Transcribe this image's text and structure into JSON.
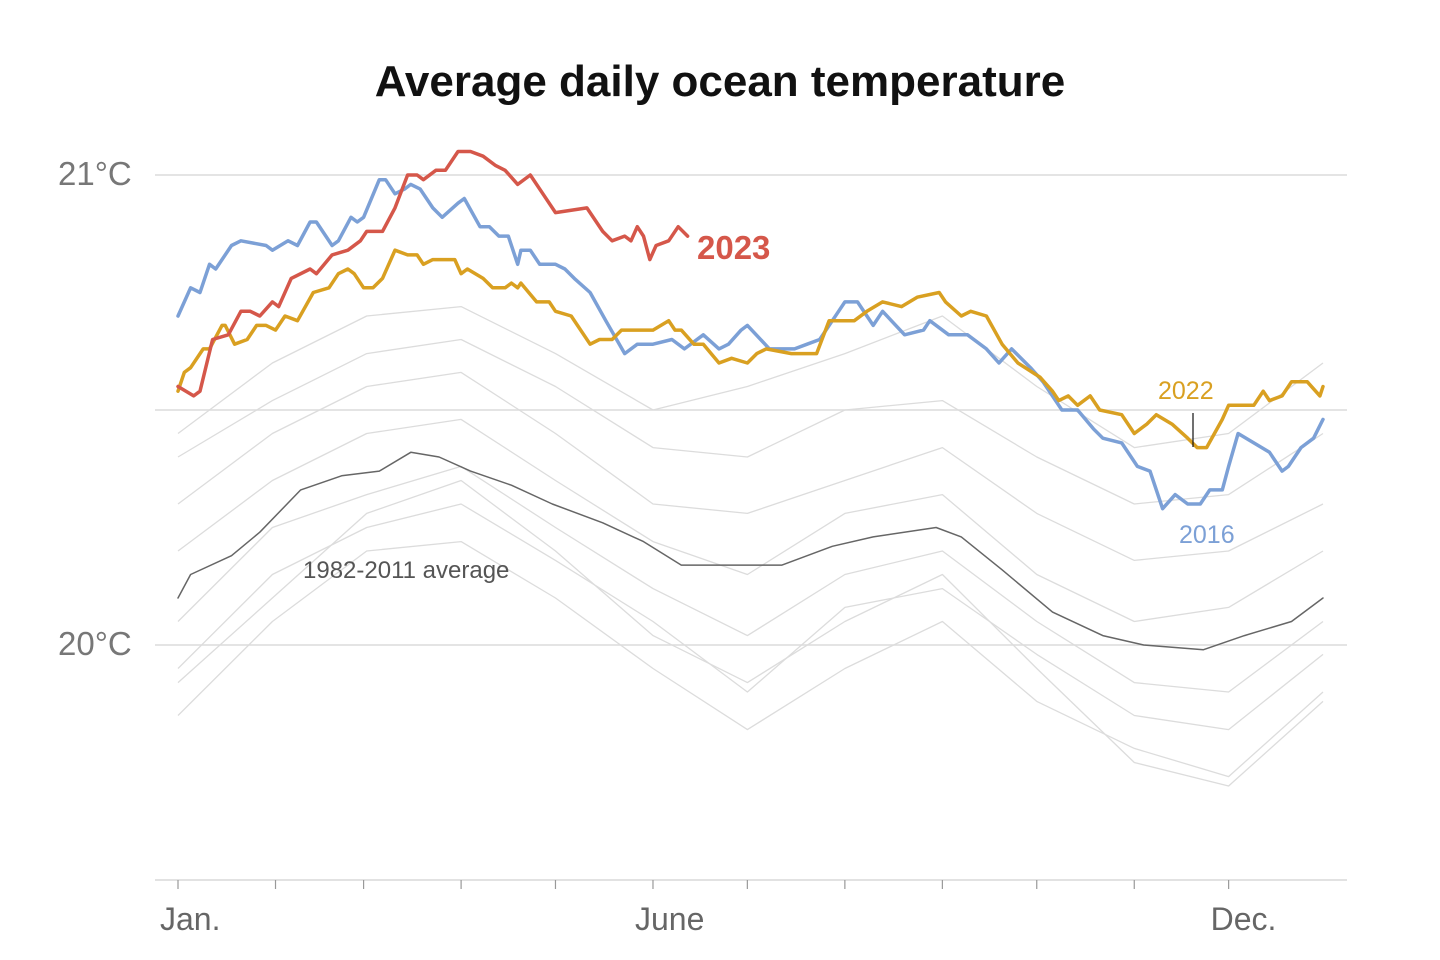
{
  "chart_data": {
    "type": "line",
    "title": "Average daily ocean temperature",
    "xlabel": "",
    "ylabel": "",
    "x_ticks": [
      {
        "date": "01-01",
        "label": "Jan."
      },
      {
        "date": "02-01",
        "label": ""
      },
      {
        "date": "03-01",
        "label": ""
      },
      {
        "date": "04-01",
        "label": ""
      },
      {
        "date": "05-01",
        "label": ""
      },
      {
        "date": "06-01",
        "label": "June"
      },
      {
        "date": "07-01",
        "label": ""
      },
      {
        "date": "08-01",
        "label": ""
      },
      {
        "date": "09-01",
        "label": ""
      },
      {
        "date": "10-01",
        "label": ""
      },
      {
        "date": "11-01",
        "label": ""
      },
      {
        "date": "12-01",
        "label": "Dec."
      }
    ],
    "y_ticks": [
      {
        "value": 21,
        "label": "21°C"
      },
      {
        "value": 20.5,
        "label": ""
      },
      {
        "value": 20,
        "label": "20°C"
      }
    ],
    "ylim": [
      19.5,
      21.1
    ],
    "xlim": [
      "01-01",
      "12-31"
    ],
    "grid": true,
    "background_series_color": "#dcdcdc",
    "background_series": [
      {
        "x": [
          "01-01",
          "01-31",
          "03-02",
          "04-01",
          "05-01",
          "06-01",
          "07-01",
          "08-01",
          "09-01",
          "10-01",
          "11-01",
          "12-01",
          "12-31"
        ],
        "y": [
          20.45,
          20.6,
          20.7,
          20.72,
          20.62,
          20.5,
          20.55,
          20.62,
          20.7,
          20.55,
          20.42,
          20.45,
          20.6
        ]
      },
      {
        "x": [
          "01-01",
          "01-31",
          "03-02",
          "04-01",
          "05-01",
          "06-01",
          "07-01",
          "08-01",
          "09-01",
          "10-01",
          "11-01",
          "12-01",
          "12-31"
        ],
        "y": [
          20.4,
          20.52,
          20.62,
          20.65,
          20.55,
          20.42,
          20.4,
          20.5,
          20.52,
          20.4,
          20.3,
          20.32,
          20.45
        ]
      },
      {
        "x": [
          "01-01",
          "01-31",
          "03-02",
          "04-01",
          "05-01",
          "06-01",
          "07-01",
          "08-01",
          "09-01",
          "10-01",
          "11-01",
          "12-01",
          "12-31"
        ],
        "y": [
          20.3,
          20.45,
          20.55,
          20.58,
          20.45,
          20.3,
          20.28,
          20.35,
          20.42,
          20.28,
          20.18,
          20.2,
          20.3
        ]
      },
      {
        "x": [
          "01-01",
          "01-31",
          "03-02",
          "04-01",
          "05-01",
          "06-01",
          "07-01",
          "08-01",
          "09-01",
          "10-01",
          "11-01",
          "12-01",
          "12-31"
        ],
        "y": [
          20.2,
          20.35,
          20.45,
          20.48,
          20.35,
          20.22,
          20.15,
          20.28,
          20.32,
          20.15,
          20.05,
          20.08,
          20.2
        ]
      },
      {
        "x": [
          "01-01",
          "01-31",
          "03-02",
          "04-01",
          "05-01",
          "06-01",
          "07-01",
          "08-01",
          "09-01",
          "10-01",
          "11-01",
          "12-01",
          "12-31"
        ],
        "y": [
          20.05,
          20.25,
          20.32,
          20.38,
          20.25,
          20.12,
          20.02,
          20.15,
          20.2,
          20.05,
          19.92,
          19.9,
          20.05
        ]
      },
      {
        "x": [
          "01-01",
          "01-31",
          "03-02",
          "04-01",
          "05-01",
          "06-01",
          "07-01",
          "08-01",
          "09-01",
          "10-01",
          "11-01",
          "12-01",
          "12-31"
        ],
        "y": [
          19.95,
          20.15,
          20.25,
          20.3,
          20.18,
          20.05,
          19.9,
          20.08,
          20.12,
          19.98,
          19.85,
          19.82,
          19.98
        ]
      },
      {
        "x": [
          "01-01",
          "01-31",
          "03-02",
          "04-01",
          "05-01",
          "06-01",
          "07-01",
          "08-01",
          "09-01",
          "10-01",
          "11-01",
          "12-01",
          "12-31"
        ],
        "y": [
          19.85,
          20.05,
          20.2,
          20.22,
          20.1,
          19.95,
          19.82,
          19.95,
          20.05,
          19.88,
          19.78,
          19.72,
          19.9
        ]
      },
      {
        "x": [
          "01-01",
          "01-31",
          "03-02",
          "04-01",
          "05-01",
          "06-01",
          "07-01",
          "08-01",
          "09-01",
          "10-01",
          "11-01",
          "12-01",
          "12-31"
        ],
        "y": [
          19.92,
          20.1,
          20.28,
          20.35,
          20.2,
          20.02,
          19.92,
          20.05,
          20.15,
          19.95,
          19.75,
          19.7,
          19.88
        ]
      }
    ],
    "series": [
      {
        "name": "1982-2011 average",
        "color": "#666666",
        "width": 1.5,
        "x": [
          "01-01",
          "01-05",
          "01-18",
          "01-27",
          "02-09",
          "02-22",
          "03-06",
          "03-16",
          "03-25",
          "04-04",
          "04-17",
          "04-30",
          "05-16",
          "05-29",
          "06-10",
          "07-12",
          "07-28",
          "08-10",
          "08-30",
          "09-07",
          "09-20",
          "10-06",
          "10-22",
          "11-04",
          "11-23",
          "12-06",
          "12-21",
          "12-31"
        ],
        "y": [
          20.1,
          20.15,
          20.19,
          20.24,
          20.33,
          20.36,
          20.37,
          20.41,
          20.4,
          20.37,
          20.34,
          20.3,
          20.26,
          20.22,
          20.17,
          20.17,
          20.21,
          20.23,
          20.25,
          20.23,
          20.16,
          20.07,
          20.02,
          20.0,
          19.99,
          20.02,
          20.05,
          20.1
        ]
      },
      {
        "name": "2016",
        "color": "#7ca0d6",
        "width": 3.5,
        "x": [
          "01-01",
          "01-05",
          "01-08",
          "01-11",
          "01-13",
          "01-18",
          "01-21",
          "01-29",
          "01-31",
          "02-05",
          "02-08",
          "02-12",
          "02-14",
          "02-19",
          "02-21",
          "02-25",
          "02-27",
          "03-01",
          "03-06",
          "03-08",
          "03-11",
          "03-14",
          "03-16",
          "03-19",
          "03-23",
          "03-26",
          "03-31",
          "04-02",
          "04-07",
          "04-10",
          "04-13",
          "04-16",
          "04-19",
          "04-20",
          "04-23",
          "04-26",
          "05-01",
          "05-04",
          "05-07",
          "05-12",
          "05-17",
          "05-23",
          "05-27",
          "06-01",
          "06-07",
          "06-11",
          "06-17",
          "06-22",
          "06-25",
          "06-29",
          "07-01",
          "07-08",
          "07-16",
          "07-20",
          "07-24",
          "07-30",
          "08-01",
          "08-05",
          "08-10",
          "08-13",
          "08-20",
          "08-26",
          "08-28",
          "09-03",
          "09-09",
          "09-15",
          "09-19",
          "09-23",
          "09-29",
          "10-03",
          "10-09",
          "10-14",
          "10-19",
          "10-22",
          "10-28",
          "11-02",
          "11-06",
          "11-10",
          "11-14",
          "11-18",
          "11-22",
          "11-25",
          "11-29",
          "12-01",
          "12-04",
          "12-09",
          "12-14",
          "12-18",
          "12-20",
          "12-24",
          "12-28",
          "12-31"
        ],
        "y": [
          20.7,
          20.76,
          20.75,
          20.81,
          20.8,
          20.85,
          20.86,
          20.85,
          20.84,
          20.86,
          20.85,
          20.9,
          20.9,
          20.85,
          20.86,
          20.91,
          20.9,
          20.91,
          20.99,
          20.99,
          20.96,
          20.97,
          20.98,
          20.97,
          20.93,
          20.91,
          20.94,
          20.95,
          20.89,
          20.89,
          20.87,
          20.87,
          20.81,
          20.84,
          20.84,
          20.81,
          20.81,
          20.8,
          20.78,
          20.75,
          20.69,
          20.62,
          20.64,
          20.64,
          20.65,
          20.63,
          20.66,
          20.63,
          20.64,
          20.67,
          20.68,
          20.63,
          20.63,
          20.64,
          20.65,
          20.71,
          20.73,
          20.73,
          20.68,
          20.71,
          20.66,
          20.67,
          20.69,
          20.66,
          20.66,
          20.63,
          20.6,
          20.63,
          20.59,
          20.56,
          20.5,
          20.5,
          20.46,
          20.44,
          20.43,
          20.38,
          20.37,
          20.29,
          20.32,
          20.3,
          20.3,
          20.33,
          20.33,
          20.38,
          20.45,
          20.43,
          20.41,
          20.37,
          20.38,
          20.42,
          20.44,
          20.48
        ]
      },
      {
        "name": "2022",
        "color": "#d9a021",
        "width": 3.5,
        "x": [
          "01-01",
          "01-03",
          "01-05",
          "01-09",
          "01-11",
          "01-15",
          "01-16",
          "01-19",
          "01-23",
          "01-26",
          "01-29",
          "02-01",
          "02-04",
          "02-08",
          "02-13",
          "02-18",
          "02-21",
          "02-24",
          "02-26",
          "03-01",
          "03-04",
          "03-07",
          "03-11",
          "03-15",
          "03-18",
          "03-20",
          "03-23",
          "03-30",
          "04-01",
          "04-03",
          "04-08",
          "04-11",
          "04-15",
          "04-17",
          "04-19",
          "04-20",
          "04-25",
          "04-29",
          "05-01",
          "05-06",
          "05-12",
          "05-15",
          "05-19",
          "05-22",
          "05-30",
          "06-01",
          "06-06",
          "06-08",
          "06-10",
          "06-14",
          "06-17",
          "06-22",
          "06-26",
          "07-01",
          "07-04",
          "07-07",
          "07-15",
          "07-23",
          "07-27",
          "07-30",
          "08-04",
          "08-08",
          "08-13",
          "08-19",
          "08-24",
          "08-31",
          "09-02",
          "09-07",
          "09-10",
          "09-15",
          "09-20",
          "09-25",
          "10-02",
          "10-06",
          "10-08",
          "10-11",
          "10-14",
          "10-18",
          "10-21",
          "10-28",
          "11-01",
          "11-05",
          "11-08",
          "11-13",
          "11-18",
          "11-21",
          "11-24",
          "11-29",
          "12-01",
          "12-06",
          "12-09",
          "12-12",
          "12-14",
          "12-18",
          "12-21",
          "12-26",
          "12-30",
          "12-31"
        ],
        "y": [
          20.54,
          20.58,
          20.59,
          20.63,
          20.63,
          20.68,
          20.68,
          20.64,
          20.65,
          20.68,
          20.68,
          20.67,
          20.7,
          20.69,
          20.75,
          20.76,
          20.79,
          20.8,
          20.79,
          20.76,
          20.76,
          20.78,
          20.84,
          20.83,
          20.83,
          20.81,
          20.82,
          20.82,
          20.79,
          20.8,
          20.78,
          20.76,
          20.76,
          20.77,
          20.76,
          20.77,
          20.73,
          20.73,
          20.71,
          20.7,
          20.64,
          20.65,
          20.65,
          20.67,
          20.67,
          20.67,
          20.69,
          20.67,
          20.67,
          20.64,
          20.64,
          20.6,
          20.61,
          20.6,
          20.62,
          20.63,
          20.62,
          20.62,
          20.69,
          20.69,
          20.69,
          20.71,
          20.73,
          20.72,
          20.74,
          20.75,
          20.73,
          20.7,
          20.71,
          20.7,
          20.64,
          20.6,
          20.57,
          20.54,
          20.52,
          20.53,
          20.51,
          20.53,
          20.5,
          20.49,
          20.45,
          20.47,
          20.49,
          20.47,
          20.44,
          20.42,
          20.42,
          20.48,
          20.51,
          20.51,
          20.51,
          20.54,
          20.52,
          20.53,
          20.56,
          20.56,
          20.53,
          20.55
        ]
      },
      {
        "name": "2023",
        "color": "#d5574a",
        "width": 3.5,
        "x": [
          "01-01",
          "01-06",
          "01-08",
          "01-12",
          "01-17",
          "01-21",
          "01-24",
          "01-27",
          "01-31",
          "02-02",
          "02-06",
          "02-12",
          "02-14",
          "02-19",
          "02-24",
          "02-28",
          "03-02",
          "03-07",
          "03-11",
          "03-15",
          "03-18",
          "03-20",
          "03-24",
          "03-27",
          "03-31",
          "04-04",
          "04-08",
          "04-12",
          "04-15",
          "04-19",
          "04-23",
          "04-27",
          "05-01",
          "05-11",
          "05-16",
          "05-19",
          "05-23",
          "05-25",
          "05-27",
          "05-29",
          "05-31",
          "06-02",
          "06-06",
          "06-09",
          "06-12"
        ],
        "y": [
          20.55,
          20.53,
          20.54,
          20.65,
          20.66,
          20.71,
          20.71,
          20.7,
          20.73,
          20.72,
          20.78,
          20.8,
          20.79,
          20.83,
          20.84,
          20.86,
          20.88,
          20.88,
          20.93,
          21.0,
          21.0,
          20.99,
          21.01,
          21.01,
          21.05,
          21.05,
          21.04,
          21.02,
          21.01,
          20.98,
          21.0,
          20.96,
          20.92,
          20.93,
          20.88,
          20.86,
          20.87,
          20.86,
          20.89,
          20.87,
          20.82,
          20.85,
          20.86,
          20.89,
          20.87
        ]
      }
    ],
    "annotations": {
      "label_2023": "2023",
      "label_2022": "2022",
      "label_2016": "2016",
      "label_average": "1982-2011 average"
    }
  }
}
